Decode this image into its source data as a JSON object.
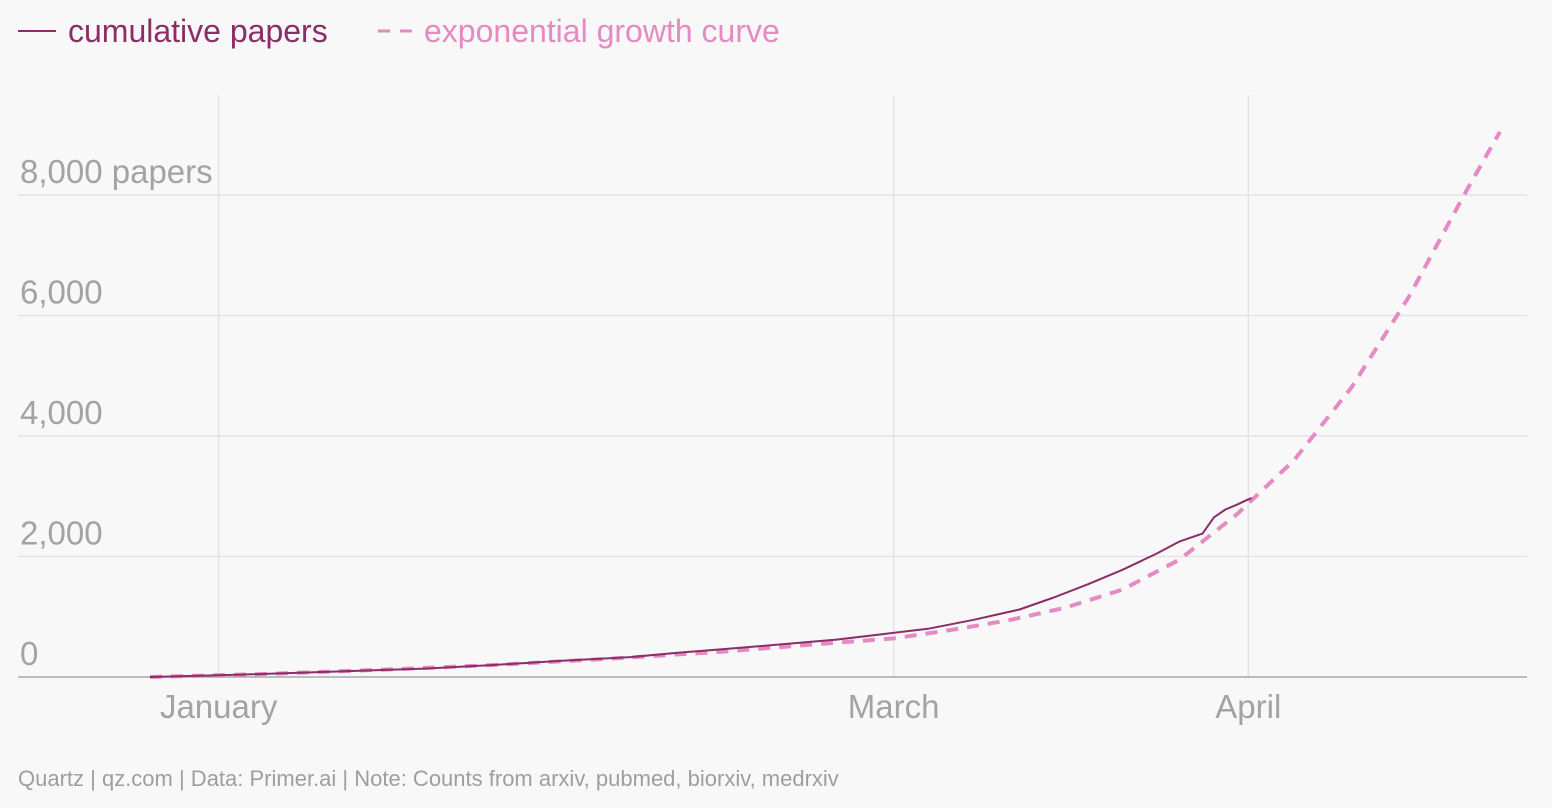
{
  "chart_data": {
    "type": "line",
    "legend": [
      {
        "name": "cumulative papers",
        "style": "solid",
        "color": "#8b2d66"
      },
      {
        "name": "exponential growth curve",
        "style": "dashed",
        "color": "#e58ac2"
      }
    ],
    "yaxis": {
      "ticks": [
        0,
        2000,
        4000,
        6000,
        8000
      ],
      "tick_labels": [
        "0",
        "2,000",
        "4,000",
        "6,000",
        "8,000 papers"
      ],
      "ylim": [
        0,
        10000
      ]
    },
    "xaxis": {
      "range_days": [
        0,
        118
      ],
      "ticks": [
        {
          "label": "January",
          "day": 6
        },
        {
          "label": "March",
          "day": 65
        },
        {
          "label": "April",
          "day": 96
        }
      ]
    },
    "series": [
      {
        "name": "cumulative papers",
        "x": [
          0,
          8,
          16,
          24,
          30,
          36,
          42,
          46,
          50,
          55,
          60,
          64,
          68,
          72,
          76,
          79,
          82,
          85,
          88,
          90,
          92,
          93,
          94,
          95,
          96,
          96.3
        ],
        "y": [
          0,
          40,
          90,
          140,
          200,
          270,
          330,
          400,
          460,
          540,
          620,
          710,
          800,
          950,
          1120,
          1320,
          1540,
          1780,
          2050,
          2250,
          2380,
          2650,
          2780,
          2860,
          2950,
          2970
        ]
      },
      {
        "name": "exponential growth curve",
        "x": [
          0,
          10,
          20,
          30,
          40,
          50,
          60,
          65,
          70,
          75,
          80,
          85,
          90,
          95,
          100,
          105,
          110,
          115,
          118
        ],
        "y": [
          0,
          50,
          120,
          200,
          300,
          420,
          570,
          640,
          780,
          940,
          1150,
          1450,
          1950,
          2700,
          3600,
          4800,
          6300,
          8050,
          9050
        ]
      }
    ]
  },
  "source_note": "Quartz | qz.com | Data: Primer.ai | Note: Counts from arxiv, pubmed, biorxiv, medrxiv"
}
